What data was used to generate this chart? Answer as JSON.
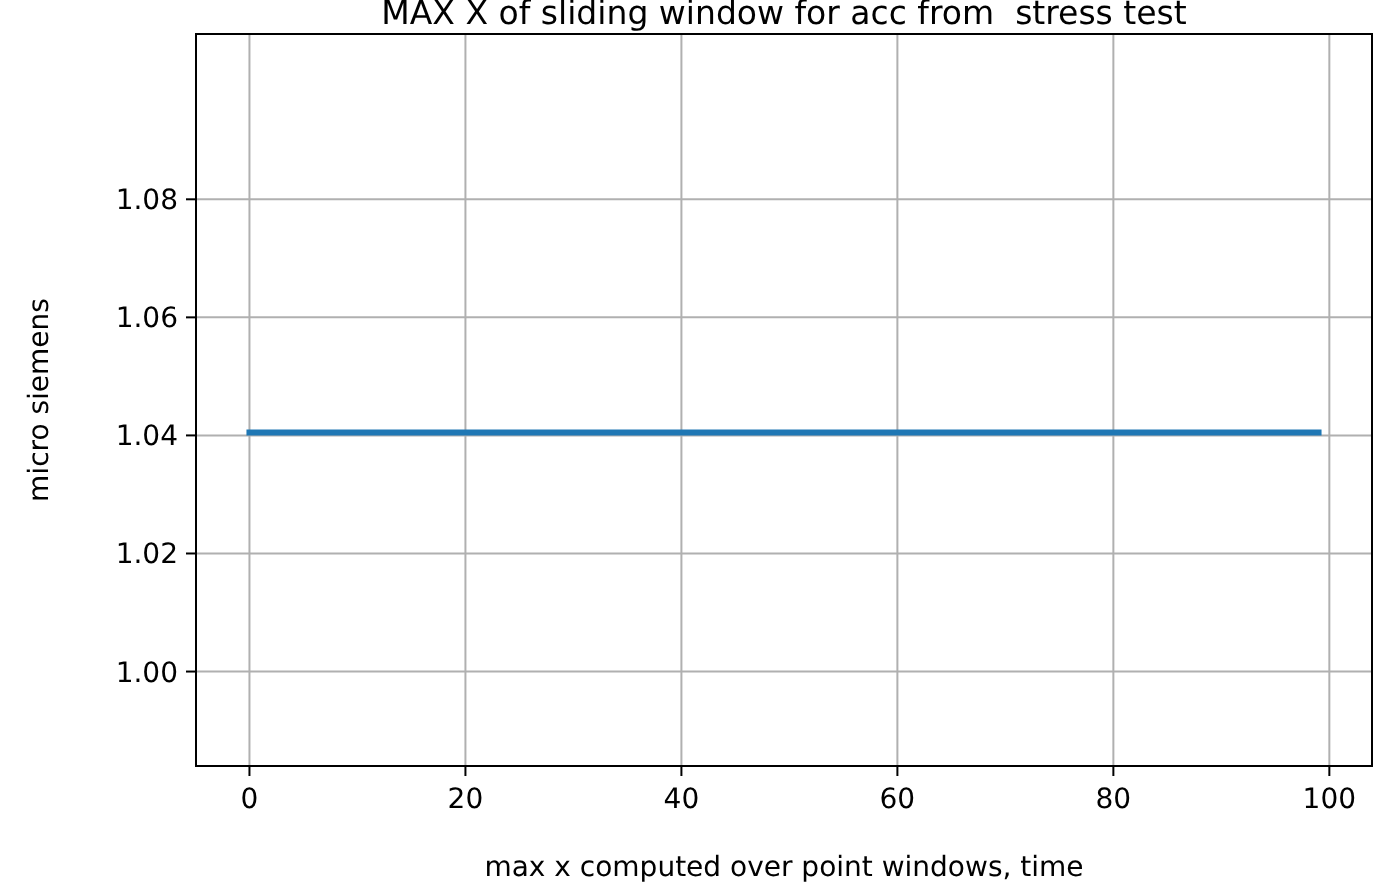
{
  "chart_data": {
    "type": "line",
    "title": "MAX X of sliding window for acc from  stress test",
    "xlabel": "max x computed over point windows, time",
    "ylabel": "micro siemens",
    "x": [
      0,
      99
    ],
    "series": [
      {
        "color": "#1f77b4",
        "values": [
          1.0405,
          1.0405
        ]
      }
    ],
    "xlim": [
      -4.95,
      103.95
    ],
    "xticks": [
      0,
      20,
      40,
      60,
      80,
      100
    ],
    "ylim": [
      0.984,
      1.108
    ],
    "yticks": [
      {
        "value": 1.0,
        "label": "1.00"
      },
      {
        "value": 1.02,
        "label": "1.02"
      },
      {
        "value": 1.04,
        "label": "1.04"
      },
      {
        "value": 1.06,
        "label": "1.06"
      },
      {
        "value": 1.08,
        "label": "1.08"
      }
    ],
    "grid": true,
    "line_style": "solid"
  }
}
